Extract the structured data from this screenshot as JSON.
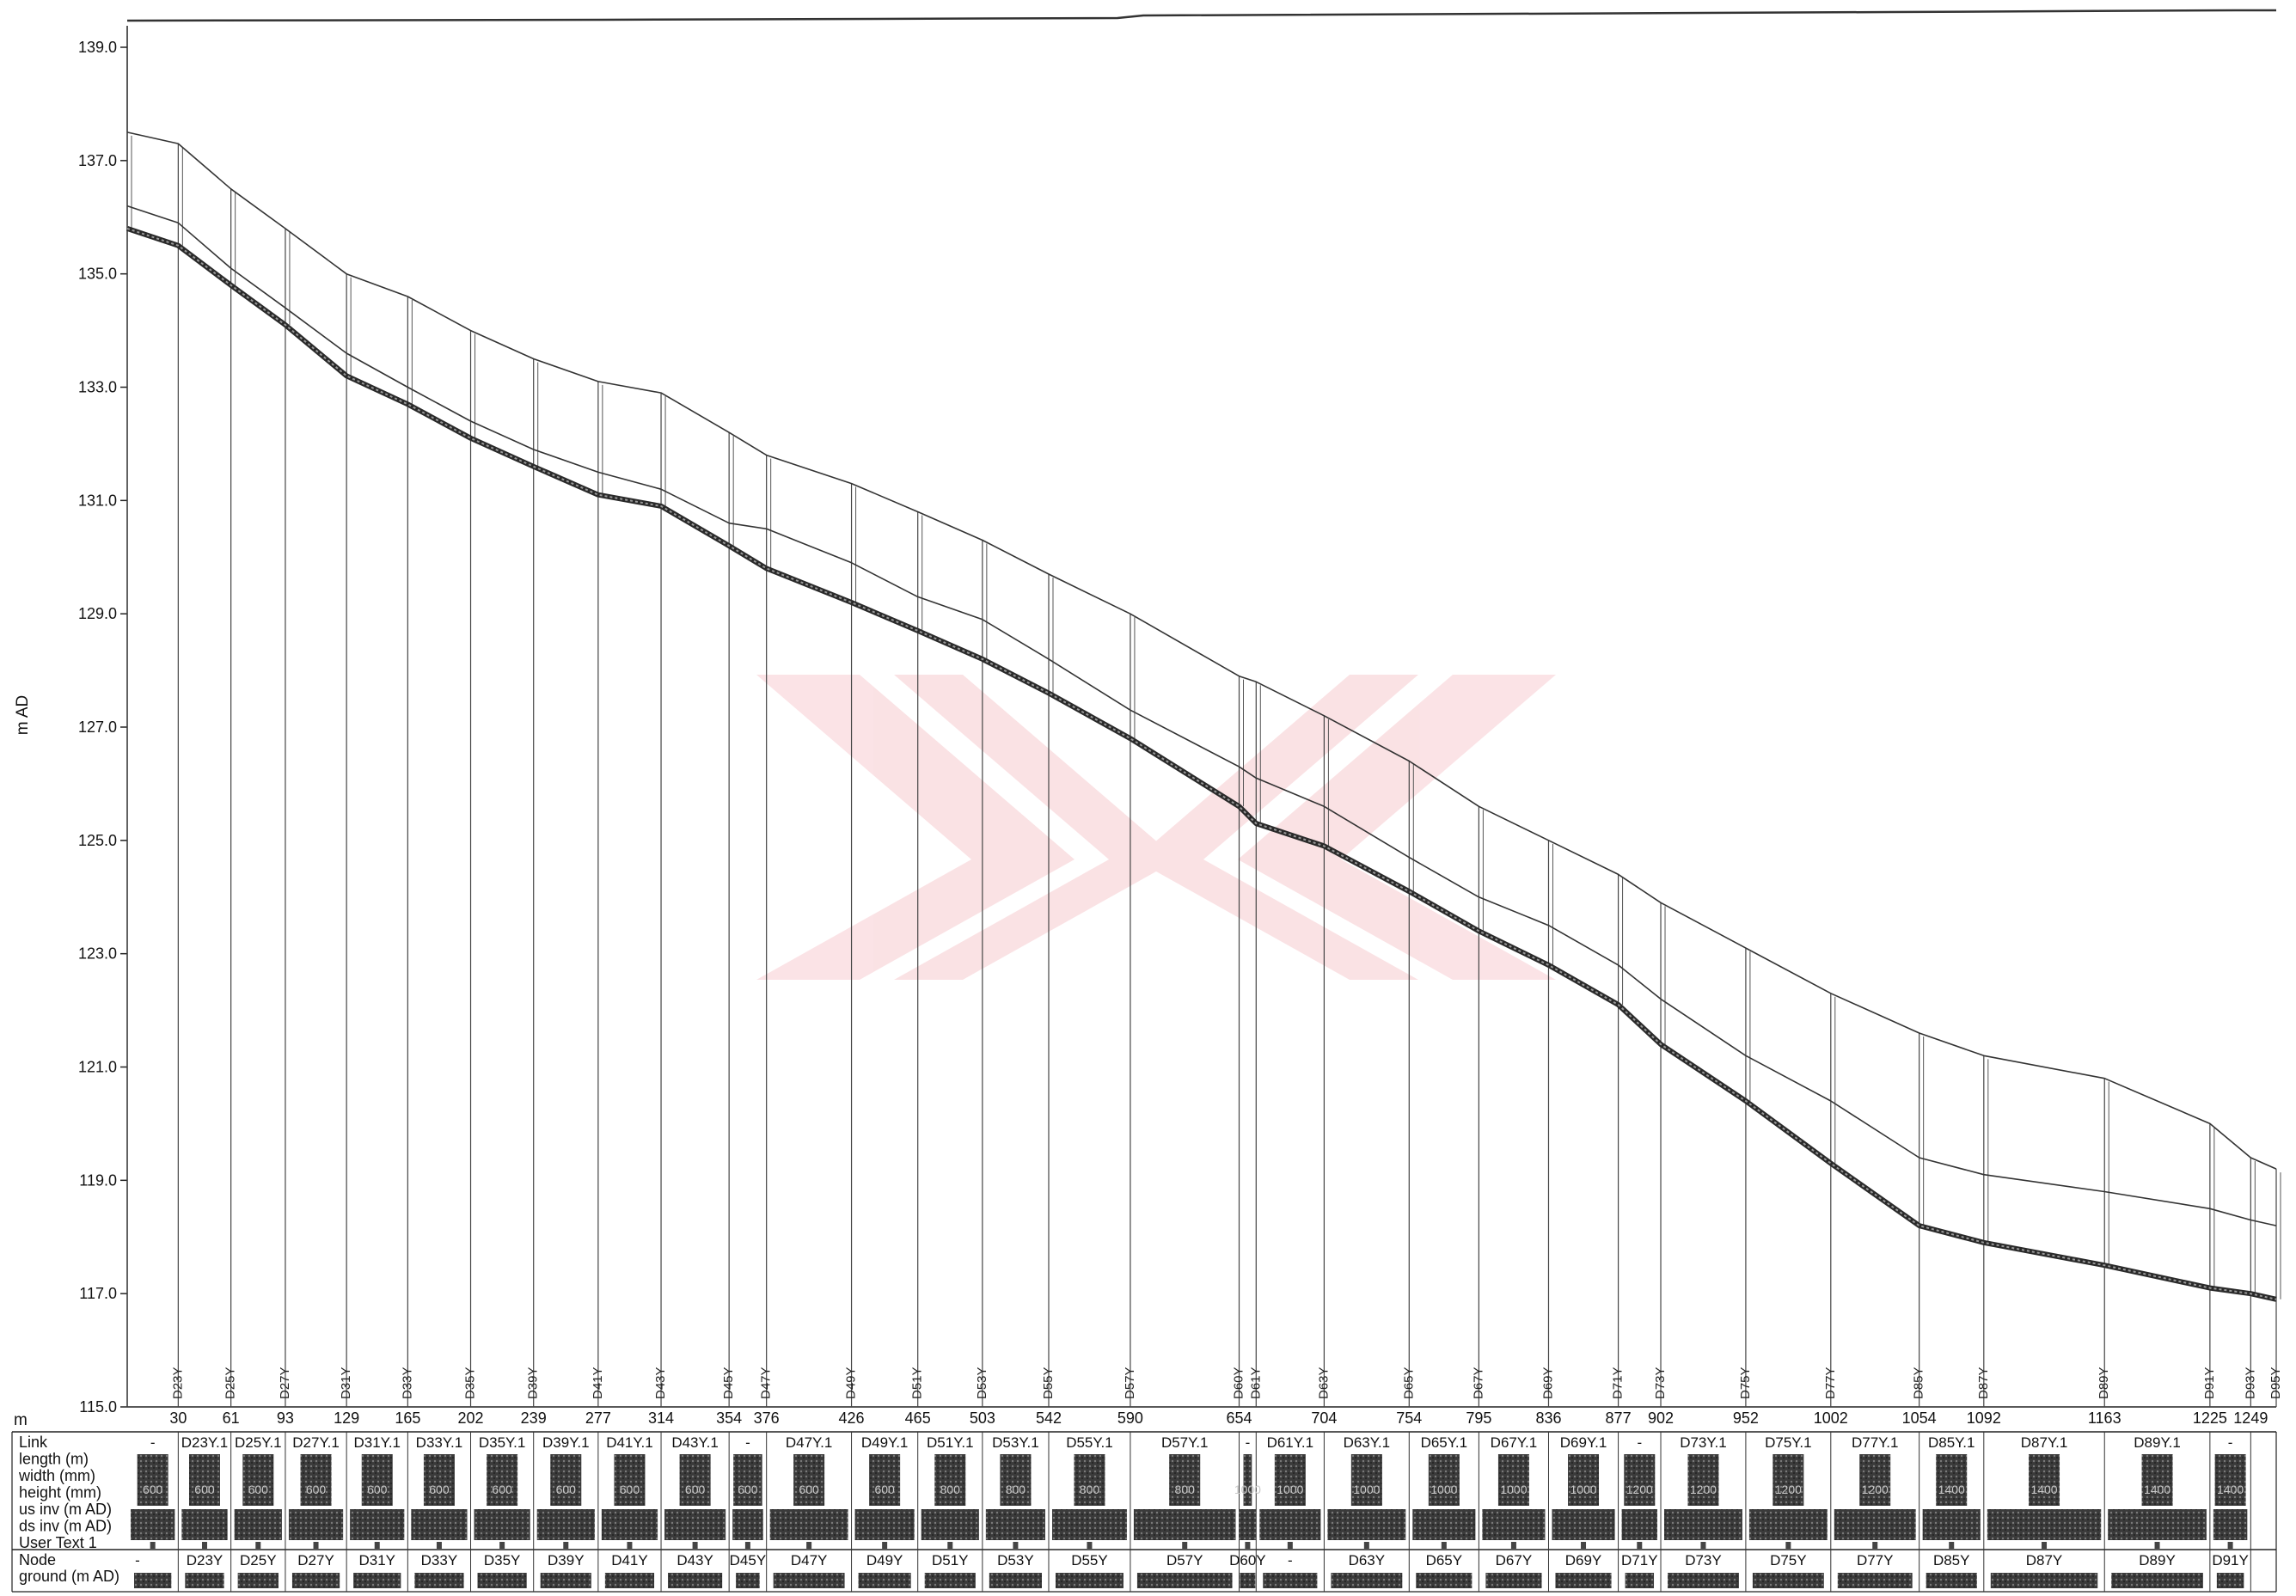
{
  "chart_data": {
    "type": "line",
    "title": "",
    "xlabel": "",
    "ylabel": "m AD",
    "xunit": "m",
    "ylim": [
      115.0,
      139.0
    ],
    "yticks": [
      "139.0",
      "137.0",
      "135.0",
      "133.0",
      "131.0",
      "129.0",
      "127.0",
      "125.0",
      "123.0",
      "121.0",
      "119.0",
      "117.0",
      "115.0"
    ],
    "grid": false,
    "x": [
      0,
      30,
      61,
      93,
      129,
      165,
      202,
      239,
      277,
      314,
      354,
      376,
      426,
      465,
      503,
      542,
      590,
      654,
      664,
      704,
      754,
      795,
      836,
      877,
      902,
      952,
      1002,
      1054,
      1092,
      1163,
      1225,
      1249,
      1264
    ],
    "x_labels": [
      "",
      "30",
      "61",
      "93",
      "129",
      "165",
      "202",
      "239",
      "277",
      "314",
      "354",
      "376",
      "426",
      "465",
      "503",
      "542",
      "590",
      "654",
      "",
      "704",
      "754",
      "795",
      "836",
      "877",
      "902",
      "952",
      "1002",
      "1054",
      "1092",
      "1163",
      "1225",
      "1249",
      ""
    ],
    "nodes": [
      "",
      "D23Y",
      "D25Y",
      "D27Y",
      "D31Y",
      "D33Y",
      "D35Y",
      "D39Y",
      "D41Y",
      "D43Y",
      "D45Y",
      "D47Y",
      "D49Y",
      "D51Y",
      "D53Y",
      "D55Y",
      "D57Y",
      "D60Y",
      "D61Y",
      "D63Y",
      "D65Y",
      "D67Y",
      "D69Y",
      "D71Y",
      "D73Y",
      "D75Y",
      "D77Y",
      "D85Y",
      "D87Y",
      "D89Y",
      "D91Y",
      "D93Y",
      "D95Y"
    ],
    "series": [
      {
        "values": [
          137.5,
          137.3,
          136.5,
          135.8,
          135.0,
          134.6,
          134.0,
          133.5,
          133.1,
          132.9,
          132.2,
          131.8,
          131.3,
          130.8,
          130.3,
          129.7,
          129.0,
          127.9,
          127.8,
          127.2,
          126.4,
          125.6,
          125.0,
          124.4,
          123.9,
          123.1,
          122.3,
          121.6,
          121.2,
          120.8,
          120.0,
          119.4,
          119.2
        ]
      },
      {
        "values": [
          136.2,
          135.9,
          135.1,
          134.4,
          133.6,
          133.0,
          132.4,
          131.9,
          131.5,
          131.2,
          130.6,
          130.5,
          129.9,
          129.3,
          128.9,
          128.2,
          127.3,
          126.3,
          126.1,
          125.6,
          124.7,
          124.0,
          123.5,
          122.8,
          122.2,
          121.2,
          120.4,
          119.4,
          119.1,
          118.8,
          118.5,
          118.3,
          118.2
        ]
      },
      {
        "values": [
          135.8,
          135.5,
          134.8,
          134.1,
          133.2,
          132.7,
          132.1,
          131.6,
          131.1,
          130.9,
          130.2,
          129.8,
          129.2,
          128.7,
          128.2,
          127.6,
          126.8,
          125.6,
          125.3,
          124.9,
          124.1,
          123.4,
          122.8,
          122.1,
          121.4,
          120.4,
          119.3,
          118.2,
          117.9,
          117.5,
          117.1,
          117.0,
          116.9
        ]
      }
    ],
    "table_rows": [
      "Link",
      "length (m)",
      "width (mm)",
      "height (mm)",
      "us inv (m AD)",
      "ds inv (m AD)",
      "User Text 1"
    ],
    "links": [
      "-",
      "D23Y.1",
      "D25Y.1",
      "D27Y.1",
      "D31Y.1",
      "D33Y.1",
      "D35Y.1",
      "D39Y.1",
      "D41Y.1",
      "D43Y.1",
      "-",
      "D47Y.1",
      "D49Y.1",
      "D51Y.1",
      "D53Y.1",
      "D55Y.1",
      "D57Y.1",
      "-",
      "D61Y.1",
      "D63Y.1",
      "D65Y.1",
      "D67Y.1",
      "D69Y.1",
      "-",
      "D73Y.1",
      "D75Y.1",
      "D77Y.1",
      "D85Y.1",
      "D87Y.1",
      "D89Y.1",
      "-"
    ],
    "link_sizes": [
      "600",
      "600",
      "600",
      "600",
      "600",
      "600",
      "600",
      "600",
      "600",
      "600",
      "600",
      "600",
      "600",
      "800",
      "800",
      "800",
      "800",
      "1000",
      "1000",
      "1000",
      "1000",
      "1000",
      "1000",
      "1200",
      "1200",
      "1200",
      "1200",
      "1400",
      "1400",
      "1400",
      "1400"
    ],
    "node_rows": [
      "Node",
      "ground (m AD)"
    ],
    "node_table": [
      "-",
      "D23Y",
      "D25Y",
      "D27Y",
      "D31Y",
      "D33Y",
      "D35Y",
      "D39Y",
      "D41Y",
      "D43Y",
      "D45Y",
      "D47Y",
      "D49Y",
      "D51Y",
      "D53Y",
      "D55Y",
      "D57Y",
      "D60Y",
      "-",
      "D63Y",
      "D65Y",
      "D67Y",
      "D69Y",
      "D71Y",
      "D73Y",
      "D75Y",
      "D77Y",
      "D85Y",
      "D87Y",
      "D89Y",
      "D91Y"
    ]
  }
}
